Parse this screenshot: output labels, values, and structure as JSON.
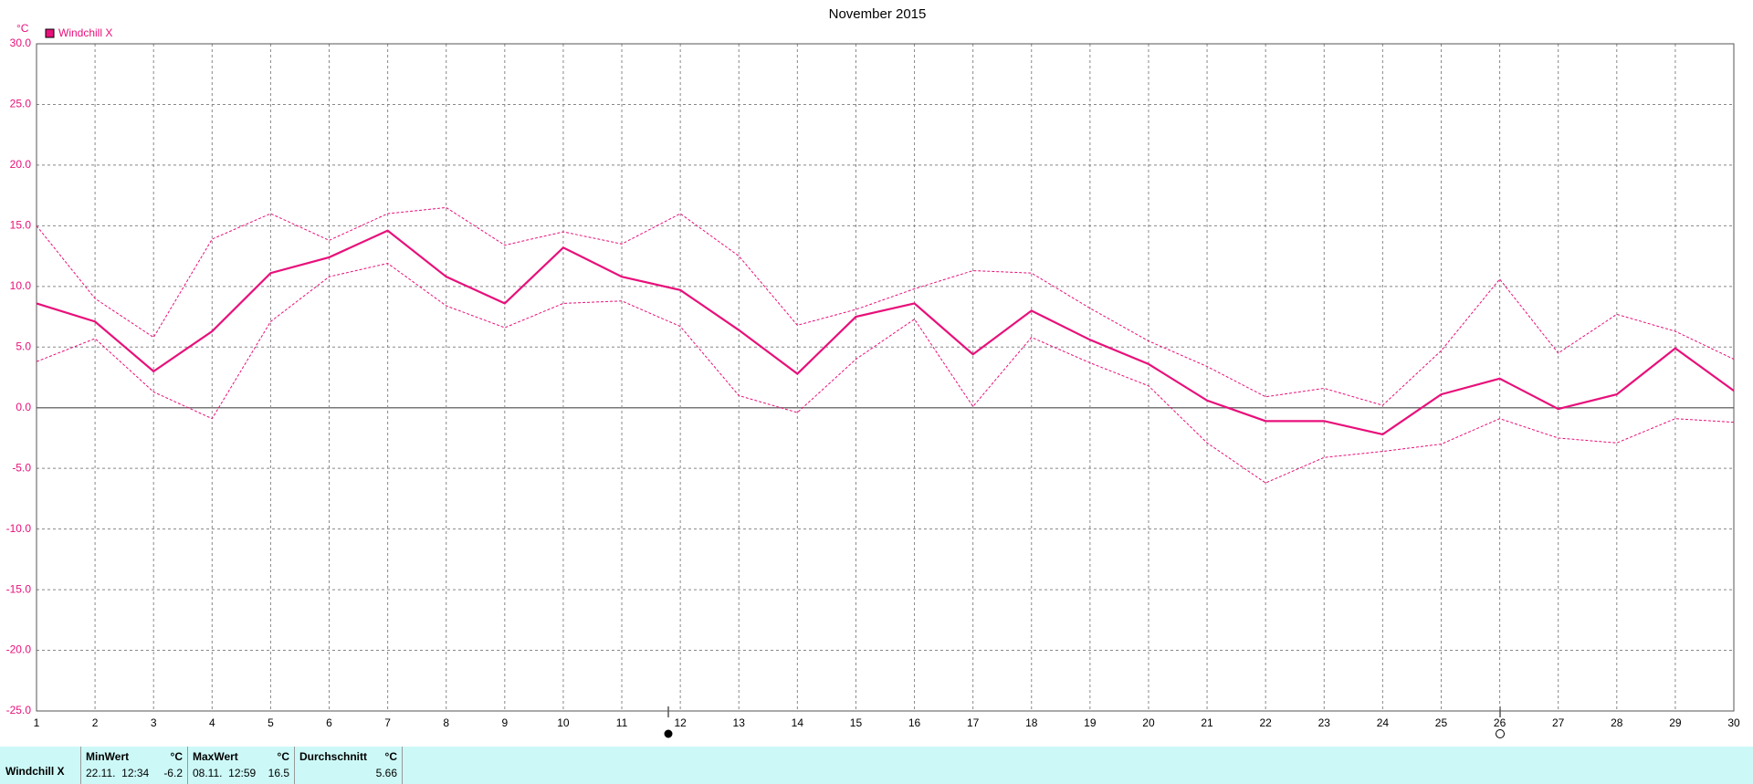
{
  "chart_data": {
    "type": "line",
    "title": "November 2015",
    "y_unit": "°C",
    "x": [
      1,
      2,
      3,
      4,
      5,
      6,
      7,
      8,
      9,
      10,
      11,
      12,
      13,
      14,
      15,
      16,
      17,
      18,
      19,
      20,
      21,
      22,
      23,
      24,
      25,
      26,
      27,
      28,
      29,
      30
    ],
    "xlim": [
      1,
      30
    ],
    "xticks": [
      1,
      2,
      3,
      4,
      5,
      6,
      7,
      8,
      9,
      10,
      11,
      12,
      13,
      14,
      15,
      16,
      17,
      18,
      19,
      20,
      21,
      22,
      23,
      24,
      25,
      26,
      27,
      28,
      29,
      30
    ],
    "ylim": [
      -25,
      30
    ],
    "yticks": [
      {
        "value": -25,
        "label": "-25.0"
      },
      {
        "value": -20,
        "label": "-20.0"
      },
      {
        "value": -15,
        "label": "-15.0"
      },
      {
        "value": -10,
        "label": "-10.0"
      },
      {
        "value": -5,
        "label": "-5.0"
      },
      {
        "value": 0,
        "label": "0.0"
      },
      {
        "value": 5,
        "label": "5.0"
      },
      {
        "value": 10,
        "label": "10.0"
      },
      {
        "value": 15,
        "label": "15.0"
      },
      {
        "value": 20,
        "label": "20.0"
      },
      {
        "value": 25,
        "label": "25.0"
      },
      {
        "value": 30,
        "label": "30.0"
      }
    ],
    "grid": true,
    "legend": "top-left",
    "series": [
      {
        "name": "Windchill X",
        "color": "#e8107a",
        "style": "solid",
        "values": [
          8.6,
          7.1,
          3.0,
          6.3,
          11.1,
          12.4,
          14.6,
          10.8,
          8.6,
          13.2,
          10.8,
          9.7,
          6.4,
          2.8,
          7.5,
          8.6,
          4.4,
          8.0,
          5.6,
          3.6,
          0.6,
          -1.1,
          -1.1,
          -2.2,
          1.1,
          2.4,
          -0.1,
          1.1,
          4.9,
          1.4
        ]
      },
      {
        "color": "#e8107a",
        "style": "dashed",
        "values": [
          15.0,
          9.0,
          5.8,
          13.9,
          16.0,
          13.8,
          16.0,
          16.5,
          13.4,
          14.5,
          13.5,
          16.0,
          12.5,
          6.8,
          8.1,
          9.8,
          11.3,
          11.1,
          8.2,
          5.5,
          3.4,
          0.9,
          1.6,
          0.2,
          4.7,
          10.6,
          4.5,
          7.7,
          6.3,
          4.0
        ]
      },
      {
        "color": "#e8107a",
        "style": "dashed",
        "values": [
          3.8,
          5.7,
          1.3,
          -0.9,
          7.1,
          10.8,
          11.9,
          8.4,
          6.6,
          8.6,
          8.8,
          6.7,
          1.0,
          -0.4,
          4.0,
          7.3,
          0.1,
          5.8,
          3.7,
          1.8,
          -2.9,
          -6.2,
          -4.1,
          -3.6,
          -3.0,
          -0.9,
          -2.5,
          -2.9,
          -0.9,
          -1.2
        ]
      }
    ]
  },
  "summary": {
    "name": "Windchill X",
    "min": {
      "label": "MinWert",
      "unit": "°C",
      "time": "22.11.  12:34",
      "value": "-6.2"
    },
    "max": {
      "label": "MaxWert",
      "unit": "°C",
      "time": "08.11.  12:59",
      "value": "16.5"
    },
    "avg": {
      "label": "Durchschnitt",
      "unit": "°C",
      "value": "5.66"
    }
  }
}
